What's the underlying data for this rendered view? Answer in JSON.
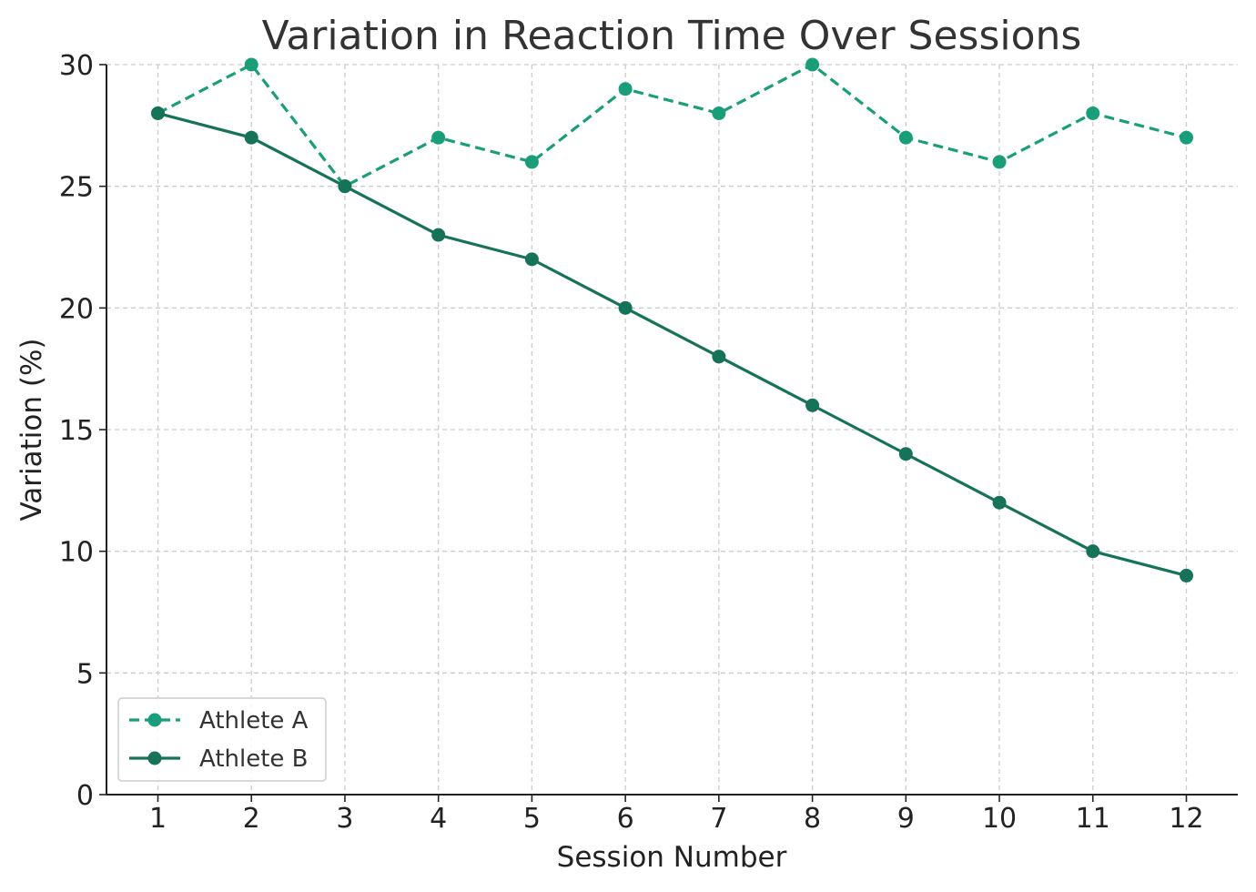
{
  "chart_data": {
    "type": "line",
    "title": "Variation in Reaction Time Over Sessions",
    "xlabel": "Session Number",
    "ylabel": "Variation (%)",
    "x": [
      1,
      2,
      3,
      4,
      5,
      6,
      7,
      8,
      9,
      10,
      11,
      12
    ],
    "xlim": [
      0.45,
      12.55
    ],
    "ylim": [
      0,
      30
    ],
    "yticks": [
      0,
      5,
      10,
      15,
      20,
      25,
      30
    ],
    "grid": true,
    "legend_position": "lower-left",
    "series": [
      {
        "name": "Athlete A",
        "values": [
          28,
          30,
          25,
          27,
          26,
          29,
          28,
          30,
          27,
          26,
          28,
          27
        ],
        "color": "#1a9e7a",
        "line_style": "dashed",
        "marker": "circle"
      },
      {
        "name": "Athlete B",
        "values": [
          28,
          27,
          25,
          23,
          22,
          20,
          18,
          16,
          14,
          12,
          10,
          9
        ],
        "color": "#17725a",
        "line_style": "solid",
        "marker": "circle"
      }
    ]
  }
}
